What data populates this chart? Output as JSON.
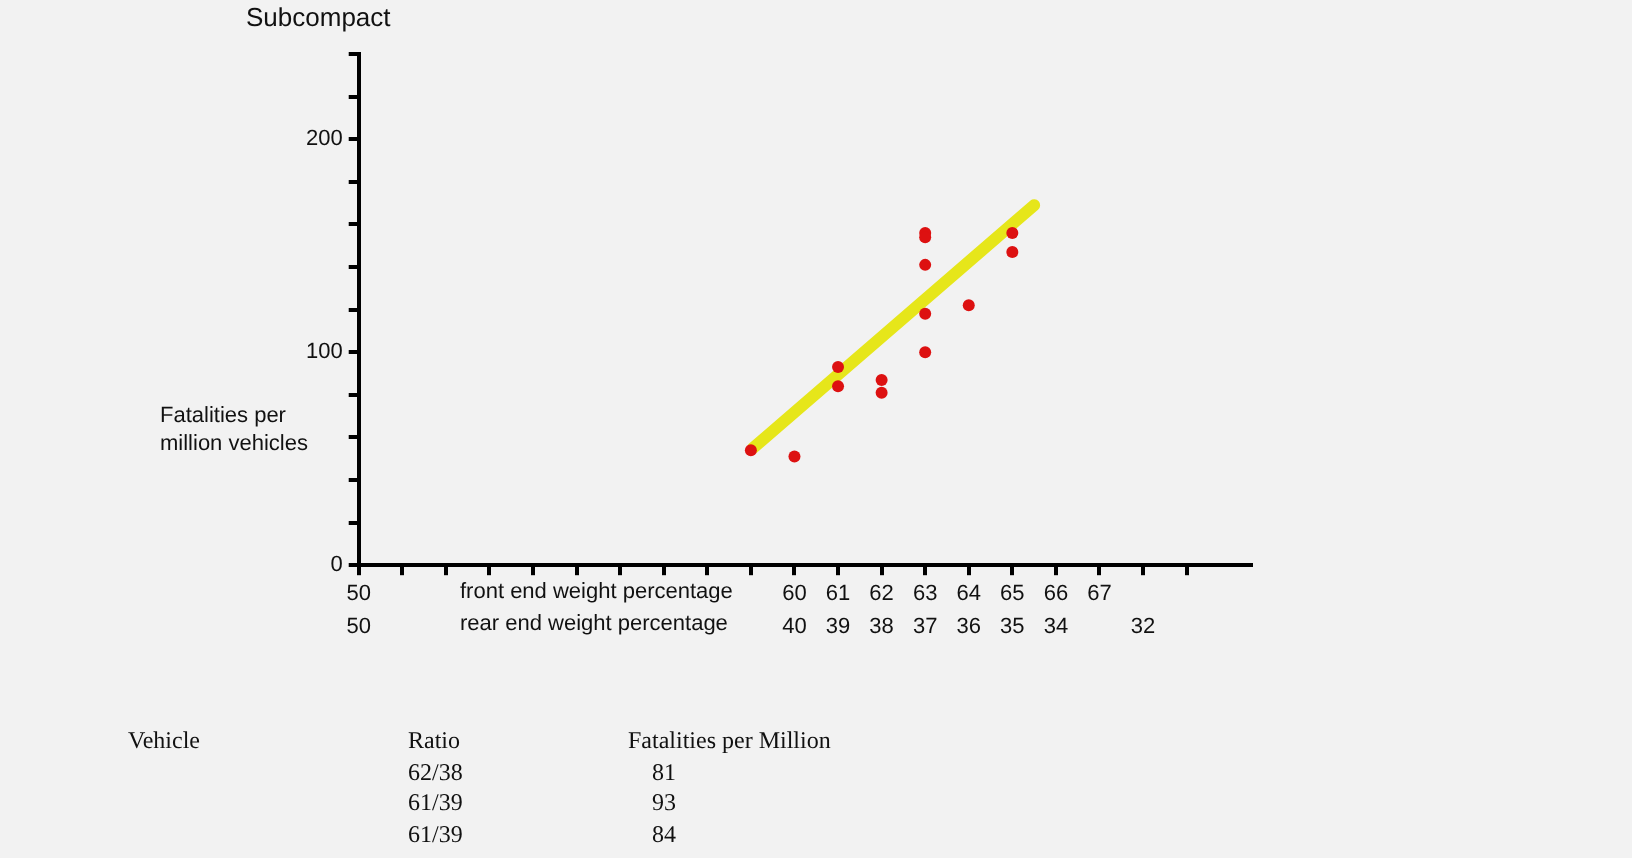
{
  "chart_data": {
    "type": "scatter",
    "title": "Subcompact",
    "xlabel": "front end weight percentage\nrear end weight percentage",
    "ylabel": "Fatalities per\nmillion vehicles",
    "xlim": [
      50,
      70.5
    ],
    "xticks": [
      50,
      {
        "value": 51,
        "label": null
      },
      {
        "value": 52,
        "label": null
      },
      {
        "value": 53,
        "label": null
      },
      {
        "value": 54,
        "label": null
      },
      {
        "value": 55,
        "label": null
      },
      {
        "value": 56,
        "label": null
      },
      {
        "value": 57,
        "label": null
      },
      {
        "value": 58,
        "label": null
      },
      {
        "value": 59,
        "label": null
      },
      60,
      61,
      62,
      63,
      64,
      65,
      66,
      67,
      {
        "value": 68,
        "label": null
      },
      {
        "value": 69,
        "label": null
      }
    ],
    "x2lim": [
      50,
      29.5
    ],
    "x2ticks": [
      50,
      40,
      39,
      38,
      37,
      36,
      35,
      34,
      32
    ],
    "ylim": [
      0,
      240
    ],
    "yticks": [
      0,
      {
        "value": 20,
        "label": null
      },
      {
        "value": 40,
        "label": null
      },
      {
        "value": 60,
        "label": null
      },
      {
        "value": 80,
        "label": null
      },
      100,
      {
        "value": 120,
        "label": null
      },
      {
        "value": 140,
        "label": null
      },
      {
        "value": 160,
        "label": null
      },
      {
        "value": 180,
        "label": null
      },
      200,
      {
        "value": 220,
        "label": null
      },
      {
        "value": 240,
        "label": null
      }
    ],
    "grid": false,
    "legend": false,
    "series": [
      {
        "type": "scatter",
        "marker": "circle",
        "color": "#dd1111",
        "x": [
          59,
          60,
          61,
          61,
          62,
          62,
          63,
          63,
          63,
          63,
          63,
          64,
          65,
          65
        ],
        "values": [
          54,
          51,
          93,
          84,
          87,
          81,
          156,
          154,
          141,
          118,
          100,
          122,
          156,
          147
        ]
      },
      {
        "type": "line",
        "marker": "none",
        "color": "#e6e61a",
        "x": [
          59.05,
          65.5
        ],
        "values": [
          55,
          169
        ]
      }
    ],
    "annotations": [
      "Vehicle",
      "Ratio",
      "Fatalities per Million",
      "62/38",
      "81",
      "61/39",
      "93",
      "61/39",
      "84"
    ]
  }
}
